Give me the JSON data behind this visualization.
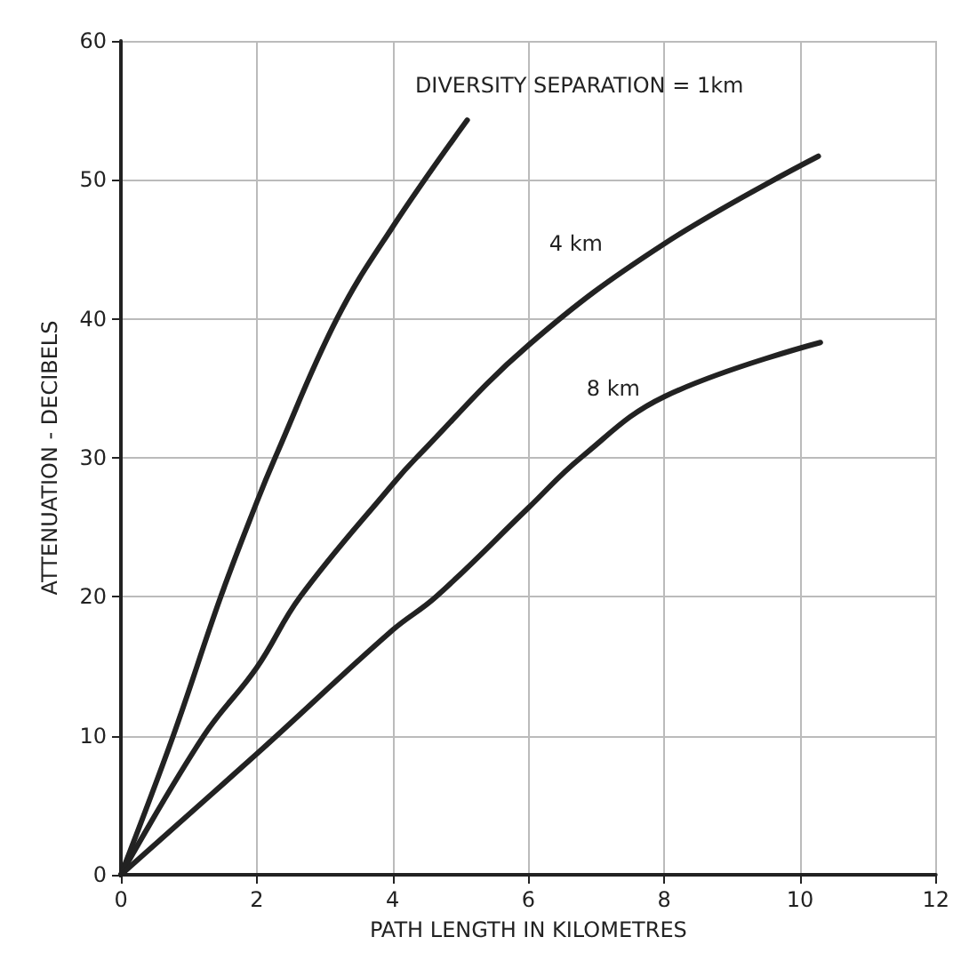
{
  "chart_data": {
    "type": "line",
    "xlabel": "PATH LENGTH IN KILOMETRES",
    "ylabel": "ATTENUATION - DECIBELS",
    "xlim": [
      0,
      12
    ],
    "xticks": [
      0,
      2,
      4,
      6,
      8,
      10,
      12
    ],
    "ylim": [
      0,
      60
    ],
    "yticks": [
      0,
      10,
      20,
      30,
      40,
      50,
      60
    ],
    "grid": true,
    "marker": "none",
    "line_style": "solid",
    "series": [
      {
        "name": "DIVERSITY SEPARATION = 1km",
        "color": "#222222",
        "x": [
          0,
          0.77,
          1.47,
          2,
          2.27,
          3.18,
          4,
          5.1
        ],
        "values": [
          0,
          10,
          20,
          26.8,
          30,
          40,
          46.6,
          54.3
        ]
      },
      {
        "name": "4 km",
        "color": "#222222",
        "x": [
          0,
          1.22,
          2,
          2.64,
          4,
          4.35,
          6,
          8,
          10.27
        ],
        "values": [
          0,
          10,
          14.9,
          20,
          28.1,
          30,
          38.1,
          45.4,
          51.7
        ]
      },
      {
        "name": "8 km",
        "color": "#222222",
        "x": [
          0,
          2,
          4,
          4.64,
          6,
          6.77,
          8,
          10.3
        ],
        "values": [
          0,
          8.7,
          17.6,
          20,
          26.4,
          30,
          34.4,
          38.3
        ]
      }
    ]
  }
}
